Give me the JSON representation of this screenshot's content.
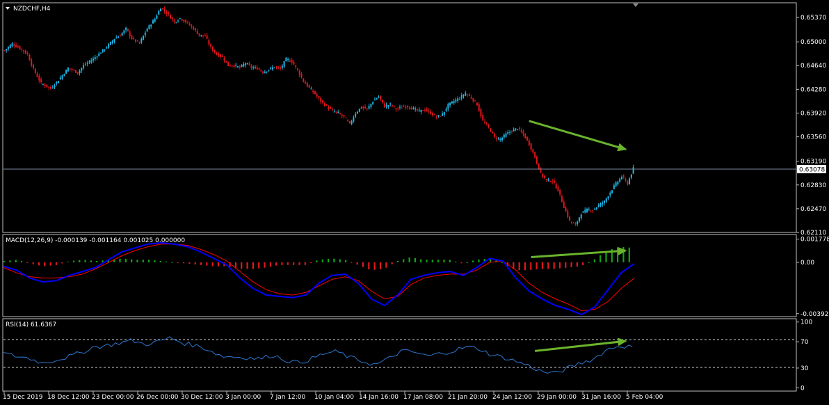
{
  "window_title": "NZDCHF,H4",
  "chart_data": [
    {
      "type": "candlestick",
      "symbol": "NZDCHF",
      "timeframe": "H4",
      "title": "NZDCHF,H4",
      "ylim": [
        0.6211,
        0.6555
      ],
      "y_ticks": [
        "0.65370",
        "0.65000",
        "0.64640",
        "0.64280",
        "0.63920",
        "0.63560",
        "0.63190",
        "0.62830",
        "0.62470",
        "0.62110"
      ],
      "current_price": "0.63078",
      "x_ticks": [
        "15 Dec 2019",
        "18 Dec 12:00",
        "23 Dec 00:00",
        "26 Dec 00:00",
        "30 Dec 12:00",
        "3 Jan 00:00",
        "7 Jan 12:00",
        "10 Jan 04:00",
        "14 Jan 16:00",
        "17 Jan 08:00",
        "21 Jan 20:00",
        "24 Jan 12:00",
        "29 Jan 00:00",
        "31 Jan 16:00",
        "5 Feb 04:00"
      ],
      "bull_color": "#1fb6e6",
      "bear_color": "#e0161b",
      "close_path": [
        [
          0,
          0.6487
        ],
        [
          4,
          0.6497
        ],
        [
          8,
          0.649
        ],
        [
          12,
          0.6481
        ],
        [
          15,
          0.6458
        ],
        [
          19,
          0.6437
        ],
        [
          24,
          0.6429
        ],
        [
          28,
          0.6442
        ],
        [
          33,
          0.646
        ],
        [
          38,
          0.6453
        ],
        [
          41,
          0.6464
        ],
        [
          46,
          0.6474
        ],
        [
          49,
          0.6482
        ],
        [
          53,
          0.6492
        ],
        [
          57,
          0.6505
        ],
        [
          60,
          0.651
        ],
        [
          63,
          0.652
        ],
        [
          66,
          0.6505
        ],
        [
          70,
          0.6498
        ],
        [
          74,
          0.652
        ],
        [
          78,
          0.6535
        ],
        [
          81,
          0.6552
        ],
        [
          85,
          0.6541
        ],
        [
          88,
          0.653
        ],
        [
          91,
          0.6536
        ],
        [
          95,
          0.6528
        ],
        [
          98,
          0.652
        ],
        [
          101,
          0.651
        ],
        [
          104,
          0.6509
        ],
        [
          107,
          0.6491
        ],
        [
          110,
          0.6481
        ],
        [
          113,
          0.6477
        ],
        [
          116,
          0.6464
        ],
        [
          119,
          0.6464
        ],
        [
          122,
          0.6461
        ],
        [
          125,
          0.6468
        ],
        [
          128,
          0.6461
        ],
        [
          131,
          0.646
        ],
        [
          134,
          0.6454
        ],
        [
          137,
          0.6458
        ],
        [
          140,
          0.6462
        ],
        [
          143,
          0.6459
        ],
        [
          146,
          0.6474
        ],
        [
          149,
          0.647
        ],
        [
          152,
          0.6457
        ],
        [
          155,
          0.644
        ],
        [
          158,
          0.643
        ],
        [
          161,
          0.6421
        ],
        [
          164,
          0.641
        ],
        [
          167,
          0.6402
        ],
        [
          170,
          0.6395
        ],
        [
          173,
          0.6392
        ],
        [
          176,
          0.6386
        ],
        [
          179,
          0.6375
        ],
        [
          182,
          0.6392
        ],
        [
          185,
          0.6401
        ],
        [
          188,
          0.6398
        ],
        [
          191,
          0.641
        ],
        [
          194,
          0.6417
        ],
        [
          197,
          0.6402
        ],
        [
          200,
          0.6405
        ],
        [
          203,
          0.6398
        ],
        [
          206,
          0.6401
        ],
        [
          209,
          0.6402
        ],
        [
          212,
          0.6398
        ],
        [
          215,
          0.6395
        ],
        [
          218,
          0.6397
        ],
        [
          221,
          0.6392
        ],
        [
          224,
          0.6386
        ],
        [
          227,
          0.639
        ],
        [
          230,
          0.6404
        ],
        [
          233,
          0.641
        ],
        [
          236,
          0.6415
        ],
        [
          239,
          0.6422
        ],
        [
          242,
          0.6415
        ],
        [
          245,
          0.6405
        ],
        [
          248,
          0.638
        ],
        [
          251,
          0.637
        ],
        [
          254,
          0.6355
        ],
        [
          257,
          0.6352
        ],
        [
          260,
          0.636
        ],
        [
          263,
          0.6365
        ],
        [
          266,
          0.6369
        ],
        [
          269,
          0.636
        ],
        [
          272,
          0.6345
        ],
        [
          275,
          0.6325
        ],
        [
          278,
          0.63
        ],
        [
          281,
          0.629
        ],
        [
          284,
          0.6289
        ],
        [
          287,
          0.6275
        ],
        [
          290,
          0.625
        ],
        [
          293,
          0.6228
        ],
        [
          296,
          0.6222
        ],
        [
          299,
          0.624
        ],
        [
          302,
          0.6245
        ],
        [
          305,
          0.6245
        ],
        [
          308,
          0.6252
        ],
        [
          311,
          0.6258
        ],
        [
          314,
          0.6272
        ],
        [
          317,
          0.6285
        ],
        [
          320,
          0.6296
        ],
        [
          323,
          0.6285
        ],
        [
          326,
          0.6308
        ]
      ],
      "annotation": {
        "type": "arrow",
        "from": [
          272,
          0.638
        ],
        "to": [
          322,
          0.6337
        ],
        "color": "#6ab32d"
      }
    },
    {
      "type": "histogram+line",
      "title": "MACD(12,26,9) -0.000139 -0.001164 0.001025 0.000000",
      "ylim": [
        -0.004151,
        0.00197
      ],
      "y_ticks": [
        "0.001778",
        "0.00",
        "-0.003926"
      ],
      "series": [
        {
          "name": "MACD line",
          "color": "#0000ff",
          "values": [
            -0.0003,
            -0.0006,
            -0.0012,
            -0.0015,
            -0.0014,
            -0.001,
            -0.0007,
            -0.0004,
            0.0002,
            0.0008,
            0.0011,
            0.0014,
            0.0015,
            0.0014,
            0.0012,
            0.0008,
            0.0003,
            -0.0002,
            -0.0012,
            -0.002,
            -0.0025,
            -0.0026,
            -0.0027,
            -0.0025,
            -0.0016,
            -0.001,
            -0.0009,
            -0.0016,
            -0.0028,
            -0.0033,
            -0.0025,
            -0.0013,
            -0.001,
            -0.0008,
            -0.0007,
            -0.001,
            -0.0004,
            0.0003,
            0.0001,
            -0.0012,
            -0.0022,
            -0.0028,
            -0.0033,
            -0.0036,
            -0.004,
            -0.0034,
            -0.0021,
            -0.0008,
            -0.0001
          ]
        },
        {
          "name": "Signal line",
          "color": "#ff0000",
          "values": [
            -0.0004,
            -0.0008,
            -0.0011,
            -0.0012,
            -0.0012,
            -0.0011,
            -0.0009,
            -0.0005,
            0.0,
            0.0005,
            0.0009,
            0.0012,
            0.0014,
            0.0014,
            0.0013,
            0.001,
            0.0006,
            0.0001,
            -0.0007,
            -0.0015,
            -0.0021,
            -0.0024,
            -0.0025,
            -0.0023,
            -0.0018,
            -0.0013,
            -0.0011,
            -0.0014,
            -0.0022,
            -0.0028,
            -0.0026,
            -0.0017,
            -0.0012,
            -0.001,
            -0.0009,
            -0.0009,
            -0.0006,
            0.0,
            0.0001,
            -0.0006,
            -0.0016,
            -0.0023,
            -0.0028,
            -0.0032,
            -0.0037,
            -0.0036,
            -0.003,
            -0.002,
            -0.0012
          ]
        },
        {
          "name": "Histogram",
          "values": [
            0.0001,
            0.0002,
            -0.0001,
            -0.0003,
            -0.0002,
            0.0001,
            0.0002,
            0.0001,
            0.0002,
            0.0003,
            0.0002,
            0.0002,
            0.0001,
            0.0,
            -0.0001,
            -0.0002,
            -0.0003,
            -0.0003,
            -0.0005,
            -0.0005,
            -0.0004,
            -0.0002,
            -0.0002,
            -0.0002,
            0.0002,
            0.0003,
            0.0002,
            -0.0002,
            -0.0006,
            -0.0005,
            0.0001,
            0.0004,
            0.0002,
            0.0002,
            0.0002,
            -0.0001,
            0.0002,
            0.0003,
            0.0,
            -0.0006,
            -0.0006,
            -0.0005,
            -0.0005,
            -0.0004,
            -0.0003,
            0.0002,
            0.0009,
            0.0012,
            0.0011
          ]
        }
      ],
      "annotation": {
        "type": "arrow",
        "from": [
          273,
          0.0004
        ],
        "to": [
          322,
          0.0009
        ],
        "color": "#6ab32d"
      }
    },
    {
      "type": "line",
      "title": "RSI(14) 61.6367",
      "ylim": [
        -5,
        105
      ],
      "y_ticks": [
        "100",
        "70",
        "30",
        "0"
      ],
      "levels": [
        70,
        30
      ],
      "series": [
        {
          "name": "RSI",
          "color": "#2e77d0",
          "values": [
            52,
            48,
            45,
            38,
            42,
            47,
            53,
            62,
            64,
            68,
            72,
            66,
            70,
            76,
            68,
            64,
            58,
            48,
            47,
            46,
            44,
            50,
            42,
            38,
            44,
            52,
            55,
            46,
            40,
            35,
            44,
            56,
            54,
            48,
            52,
            56,
            62,
            60,
            50,
            46,
            40,
            33,
            24,
            22,
            30,
            38,
            44,
            58,
            64,
            62
          ]
        }
      ],
      "annotation": {
        "type": "arrow",
        "from": [
          275,
          56
        ],
        "to": [
          322,
          71
        ],
        "color": "#6ab32d"
      }
    }
  ]
}
